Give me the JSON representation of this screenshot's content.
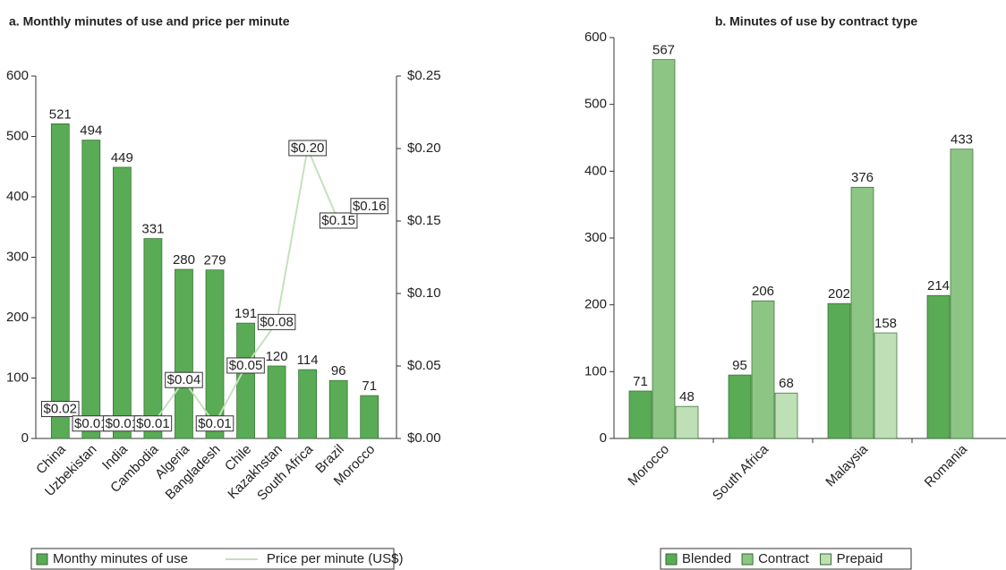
{
  "chart_data": [
    {
      "type": "bar",
      "title": "a. Monthly minutes of use and price per minute",
      "categories": [
        "China",
        "Uzbekistan",
        "India",
        "Cambodia",
        "Algeria",
        "Bangladesh",
        "Chile",
        "Kazakhstan",
        "South Africa",
        "Brazil",
        "Morocco"
      ],
      "series": [
        {
          "name": "Monthy minutes of use",
          "color": "#5aab55",
          "values": [
            521,
            494,
            449,
            331,
            280,
            279,
            191,
            120,
            114,
            96,
            71
          ]
        },
        {
          "name": "Price per minute (US$)",
          "type": "line",
          "axis": "y2",
          "color": "#c5e0bf",
          "values": [
            0.02,
            0.01,
            0.01,
            0.01,
            0.04,
            0.01,
            0.05,
            0.08,
            0.2,
            0.15,
            0.16
          ],
          "value_labels": [
            "$0.02",
            "$0.01",
            "$0.01",
            "$0.01",
            "$0.04",
            "$0.01",
            "$0.05",
            "$0.08",
            "$0.20",
            "$0.15",
            "$0.16"
          ]
        }
      ],
      "ylim": [
        0,
        600
      ],
      "yticks": [
        0,
        100,
        200,
        300,
        400,
        500,
        600
      ],
      "y2lim": [
        0,
        0.25
      ],
      "y2ticks": [
        {
          "value": 0,
          "label": "$0.00"
        },
        {
          "value": 0.05,
          "label": "$0.05"
        },
        {
          "value": 0.1,
          "label": "$0.10"
        },
        {
          "value": 0.15,
          "label": "$0.15"
        },
        {
          "value": 0.2,
          "label": "$0.20"
        },
        {
          "value": 0.25,
          "label": "$0.25"
        }
      ]
    },
    {
      "type": "bar",
      "title": "b. Minutes of use by contract type",
      "categories": [
        "Morocco",
        "South Africa",
        "Malaysia",
        "Romania"
      ],
      "series": [
        {
          "name": "Blended",
          "color": "#5aab55",
          "values": [
            71,
            95,
            202,
            214
          ]
        },
        {
          "name": "Contract",
          "color": "#8dc684",
          "values": [
            567,
            206,
            376,
            433
          ]
        },
        {
          "name": "Prepaid",
          "color": "#bfdfb6",
          "values": [
            48,
            68,
            158,
            null
          ]
        }
      ],
      "ylim": [
        0,
        600
      ],
      "yticks": [
        0,
        100,
        200,
        300,
        400,
        500,
        600
      ]
    }
  ]
}
